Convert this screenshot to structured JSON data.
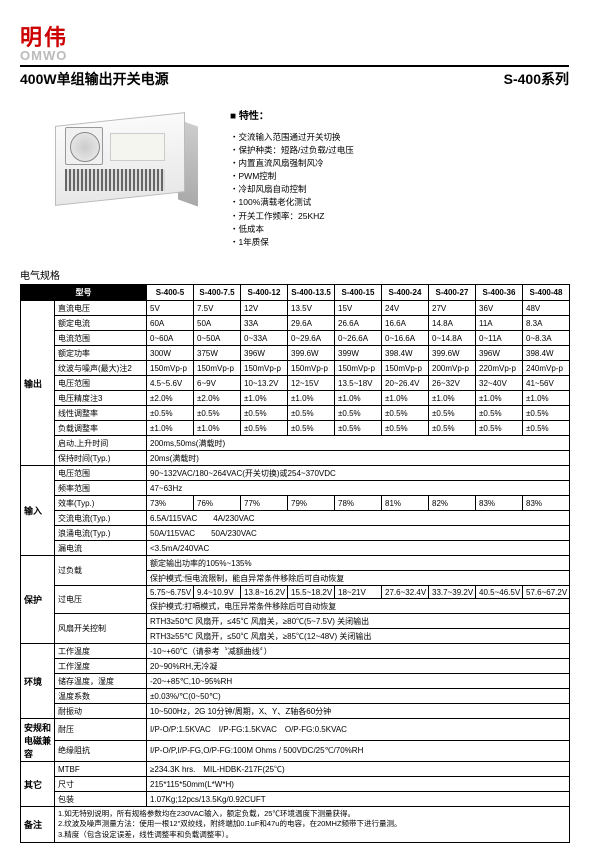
{
  "brand": {
    "cn": "明伟",
    "en": "OMWO"
  },
  "title": {
    "main": "400W单组输出开关电源",
    "series": "S-400系列"
  },
  "features": {
    "heading": "特性：",
    "items": [
      "交流输入范围通过开关切换",
      "保护种类：短路/过负载/过电压",
      "内置直流风扇强制风冷",
      "PWM控制",
      "冷却风扇自动控制",
      "100%满载老化测试",
      "开关工作频率：25KHZ",
      "低成本",
      "1年质保"
    ]
  },
  "specHeading": "电气规格",
  "models": [
    "S-400-5",
    "S-400-7.5",
    "S-400-12",
    "S-400-13.5",
    "S-400-15",
    "S-400-24",
    "S-400-27",
    "S-400-36",
    "S-400-48"
  ],
  "groups": {
    "output": "输出",
    "input": "输入",
    "protect": "保护",
    "env": "环境",
    "safety": "安规和电磁兼容",
    "other": "其它",
    "remark": "备注"
  },
  "rows": {
    "dc_v": {
      "label": "直流电压",
      "v": [
        "5V",
        "7.5V",
        "12V",
        "13.5V",
        "15V",
        "24V",
        "27V",
        "36V",
        "48V"
      ]
    },
    "rated_i": {
      "label": "额定电流",
      "v": [
        "60A",
        "50A",
        "33A",
        "29.6A",
        "26.6A",
        "16.6A",
        "14.8A",
        "11A",
        "8.3A"
      ]
    },
    "i_range": {
      "label": "电流范围",
      "v": [
        "0~60A",
        "0~50A",
        "0~33A",
        "0~29.6A",
        "0~26.6A",
        "0~16.6A",
        "0~14.8A",
        "0~11A",
        "0~8.3A"
      ]
    },
    "rated_p": {
      "label": "额定功率",
      "v": [
        "300W",
        "375W",
        "396W",
        "399.6W",
        "399W",
        "398.4W",
        "399.6W",
        "396W",
        "398.4W"
      ]
    },
    "ripple": {
      "label": "纹波与噪声(最大)注2",
      "v": [
        "150mVp-p",
        "150mVp-p",
        "150mVp-p",
        "150mVp-p",
        "150mVp-p",
        "150mVp-p",
        "200mVp-p",
        "220mVp-p",
        "240mVp-p"
      ]
    },
    "v_range": {
      "label": "电压范围",
      "v": [
        "4.5~5.6V",
        "6~9V",
        "10~13.2V",
        "12~15V",
        "13.5~18V",
        "20~26.4V",
        "26~32V",
        "32~40V",
        "41~56V"
      ]
    },
    "v_acc": {
      "label": "电压精度注3",
      "v": [
        "±2.0%",
        "±2.0%",
        "±1.0%",
        "±1.0%",
        "±1.0%",
        "±1.0%",
        "±1.0%",
        "±1.0%",
        "±1.0%"
      ]
    },
    "line_reg": {
      "label": "线性调整率",
      "v": [
        "±0.5%",
        "±0.5%",
        "±0.5%",
        "±0.5%",
        "±0.5%",
        "±0.5%",
        "±0.5%",
        "±0.5%",
        "±0.5%"
      ]
    },
    "load_reg": {
      "label": "负载调整率",
      "v": [
        "±1.0%",
        "±1.0%",
        "±0.5%",
        "±0.5%",
        "±0.5%",
        "±0.5%",
        "±0.5%",
        "±0.5%",
        "±0.5%"
      ]
    },
    "setup": {
      "label": "启动,上升时间",
      "full": "200ms,50ms(满载时)"
    },
    "hold": {
      "label": "保持时间(Typ.)",
      "full": "20ms(满载时)"
    },
    "vin_range": {
      "label": "电压范围",
      "full": "90~132VAC/180~264VAC(开关切换)或254~370VDC"
    },
    "freq": {
      "label": "频率范围",
      "full": "47~63Hz"
    },
    "eff": {
      "label": "效率(Typ.)",
      "v": [
        "73%",
        "76%",
        "77%",
        "79%",
        "78%",
        "81%",
        "82%",
        "83%",
        "83%"
      ]
    },
    "ac_i": {
      "label": "交流电流(Typ.)",
      "full": "6.5A/115VAC　　4A/230VAC"
    },
    "inrush": {
      "label": "浪涌电流(Typ.)",
      "full": "50A/115VAC　　50A/230VAC"
    },
    "leak": {
      "label": "漏电流",
      "full": "<3.5mA/240VAC"
    },
    "overload1": {
      "label": "过负载",
      "full": "额定输出功率的105%~135%"
    },
    "overload2": {
      "full": "保护模式:恒电流限制，能自异常条件移除后可自动恢复"
    },
    "ovp1": {
      "label": "过电压",
      "v": [
        "5.75~6.75V",
        "9.4~10.9V",
        "13.8~16.2V",
        "15.5~18.2V",
        "18~21V",
        "27.6~32.4V",
        "33.7~39.2V",
        "40.5~46.5V",
        "57.6~67.2V"
      ]
    },
    "ovp2": {
      "full": "保护模式:打嗝模式，电压异常条件移除后可自动恢复"
    },
    "fan": {
      "label": "风扇开关控制",
      "l1": "RTH3≥50℃ 风扇开，≤45℃ 风扇关，≥80℃(5~7.5V) 关闭输出",
      "l2": "RTH3≥55℃ 风扇开，≤50℃ 风扇关，≥85℃(12~48V) 关闭输出"
    },
    "work_t": {
      "label": "工作温度",
      "full": "-10~+60℃（请参考〝减额曲线〞）"
    },
    "work_h": {
      "label": "工作湿度",
      "full": "20~90%RH,无冷凝"
    },
    "store": {
      "label": "储存温度，湿度",
      "full": "-20~+85℃,10~95%RH"
    },
    "temp_coef": {
      "label": "温度系数",
      "full": "±0.03%/℃(0~50℃)"
    },
    "vib": {
      "label": "耐振动",
      "full": "10~500Hz，2G 10分钟/周期，X、Y、Z轴各60分钟"
    },
    "withstand": {
      "label": "耐压",
      "full": "I/P-O/P:1.5KVAC　I/P-FG:1.5KVAC　O/P-FG:0.5KVAC"
    },
    "ir": {
      "label": "绝缘阻抗",
      "full": "I/P-O/P,I/P-FG,O/P-FG:100M Ohms / 500VDC/25℃/70%RH"
    },
    "mtbf": {
      "label": "MTBF",
      "full": "≥234.3K hrs.　MIL-HDBK-217F(25℃)"
    },
    "dim": {
      "label": "尺寸",
      "full": "215*115*50mm(L*W*H)"
    },
    "pack": {
      "label": "包装",
      "full": "1.07Kg;12pcs/13.5Kg/0.92CUFT"
    },
    "note1": "1.如无特别说明，所有规格参数均在230VAC输入，额定负载，25℃环境温度下测量获得。",
    "note2": "2.纹波及噪声测量方法：使用一根12\"双绞线，附终端加0.1uF和47u的电容，在20MHZ频带下进行量测。",
    "note3": "3.精度（包含设定误差，线性调整率和负载调整率）。"
  },
  "modelLabel": "型号"
}
